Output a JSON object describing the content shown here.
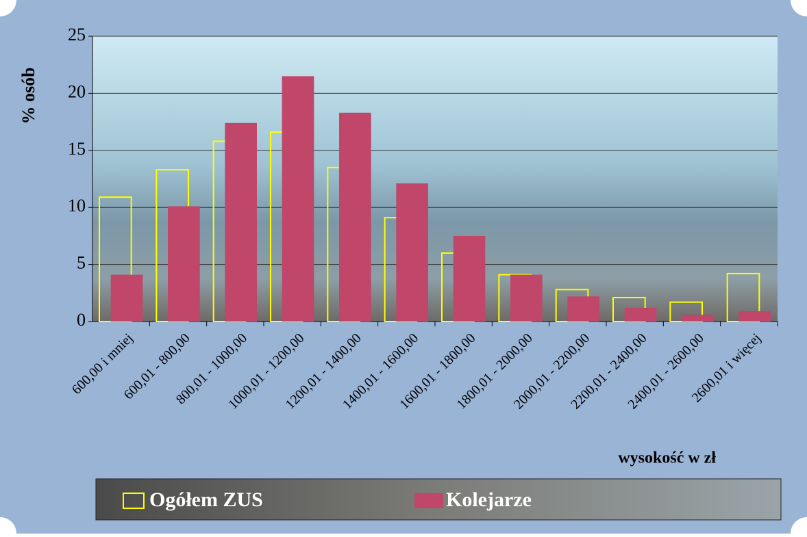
{
  "chart_data": {
    "type": "bar",
    "y_label": "% osób",
    "x_label": "wysokość w zł",
    "categories": [
      "600,00 i mniej",
      "600,01 - 800,00",
      "800,01 - 1000,00",
      "1000,01 - 1200,00",
      "1200,01 - 1400,00",
      "1400,01 - 1600,00",
      "1600,01 - 1800,00",
      "1800,01 - 2000,00",
      "2000,01 - 2200,00",
      "2200,01 - 2400,00",
      "2400,01 - 2600,00",
      "2600,01 i więcej"
    ],
    "series": [
      {
        "name": "Ogółem ZUS",
        "color": "#ffff00",
        "outline": true,
        "values": [
          10.9,
          13.3,
          15.8,
          16.6,
          13.5,
          9.1,
          6.0,
          4.1,
          2.8,
          2.1,
          1.7,
          4.2
        ]
      },
      {
        "name": "Kolejarze",
        "color": "#c0466a",
        "outline": false,
        "values": [
          4.1,
          10.1,
          17.4,
          21.5,
          18.3,
          12.1,
          7.5,
          4.1,
          2.2,
          1.2,
          0.6,
          0.9
        ]
      }
    ],
    "ylim": [
      0,
      25
    ],
    "yticks": [
      0,
      5,
      10,
      15,
      20,
      25
    ],
    "grid": true
  }
}
